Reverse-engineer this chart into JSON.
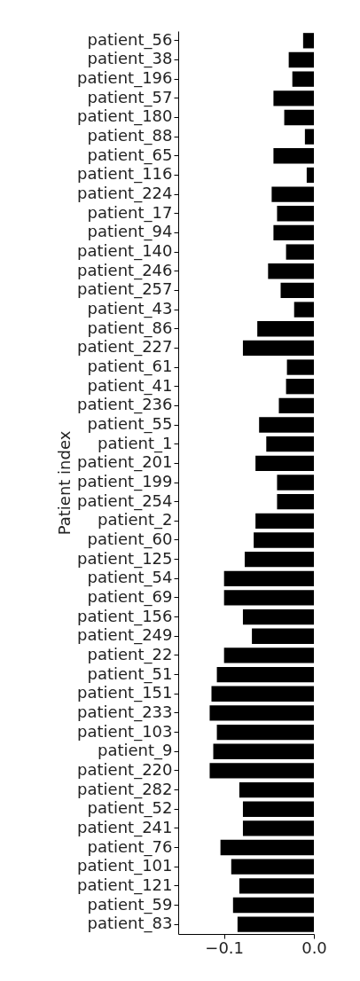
{
  "chart_data": {
    "type": "bar",
    "orientation": "horizontal",
    "ylabel": "Patient index",
    "categories": [
      "patient_56",
      "patient_38",
      "patient_196",
      "patient_57",
      "patient_180",
      "patient_88",
      "patient_65",
      "patient_116",
      "patient_224",
      "patient_17",
      "patient_94",
      "patient_140",
      "patient_246",
      "patient_257",
      "patient_43",
      "patient_86",
      "patient_227",
      "patient_61",
      "patient_41",
      "patient_236",
      "patient_55",
      "patient_1",
      "patient_201",
      "patient_199",
      "patient_254",
      "patient_2",
      "patient_60",
      "patient_125",
      "patient_54",
      "patient_69",
      "patient_156",
      "patient_249",
      "patient_22",
      "patient_51",
      "patient_151",
      "patient_233",
      "patient_103",
      "patient_9",
      "patient_220",
      "patient_282",
      "patient_52",
      "patient_241",
      "patient_76",
      "patient_101",
      "patient_121",
      "patient_59",
      "patient_83"
    ],
    "values": [
      -0.012,
      -0.028,
      -0.024,
      -0.045,
      -0.033,
      -0.01,
      -0.045,
      -0.008,
      -0.047,
      -0.041,
      -0.045,
      -0.031,
      -0.051,
      -0.037,
      -0.022,
      -0.063,
      -0.079,
      -0.03,
      -0.031,
      -0.039,
      -0.061,
      -0.053,
      -0.065,
      -0.041,
      -0.041,
      -0.065,
      -0.067,
      -0.077,
      -0.1,
      -0.1,
      -0.079,
      -0.069,
      -0.1,
      -0.108,
      -0.114,
      -0.116,
      -0.108,
      -0.112,
      -0.116,
      -0.083,
      -0.079,
      -0.079,
      -0.104,
      -0.092,
      -0.083,
      -0.09,
      -0.085
    ],
    "color": "#000000",
    "xlim": [
      -0.151,
      0.0
    ],
    "xticks": [
      {
        "value": -0.1,
        "label": "−0.1"
      },
      {
        "value": 0,
        "label": "0.0"
      }
    ],
    "grid": false
  }
}
